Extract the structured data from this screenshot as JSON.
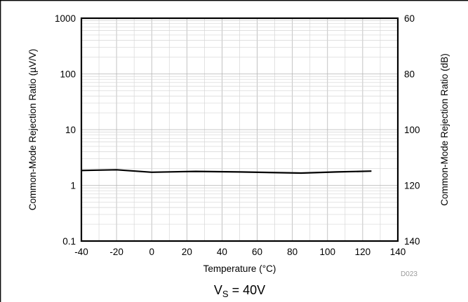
{
  "chart_data": {
    "type": "line",
    "xlabel": "Temperature (°C)",
    "ylabel": "Common-Mode Rejection Ratio (µV/V)",
    "y2label": "Common-Mode Rejection Ratio (dB)",
    "xlim": [
      -40,
      140
    ],
    "ylim": [
      0.1,
      1000
    ],
    "y2lim": [
      140,
      60
    ],
    "yscale": "log",
    "grid": true,
    "x_ticks": [
      "-40",
      "-20",
      "0",
      "20",
      "40",
      "60",
      "80",
      "100",
      "120",
      "140"
    ],
    "y_ticks": [
      "1000",
      "100",
      "10",
      "1",
      "0.1"
    ],
    "y2_ticks": [
      "60",
      "80",
      "100",
      "120",
      "140"
    ],
    "series": [
      {
        "x": [
          -40,
          -20,
          0,
          25,
          50,
          85,
          105,
          125
        ],
        "values": [
          1.85,
          1.9,
          1.72,
          1.78,
          1.74,
          1.66,
          1.74,
          1.8
        ]
      }
    ],
    "figure_code": "D023",
    "caption_main": "V",
    "caption_sub": "S",
    "caption_rest": " = 40V"
  }
}
